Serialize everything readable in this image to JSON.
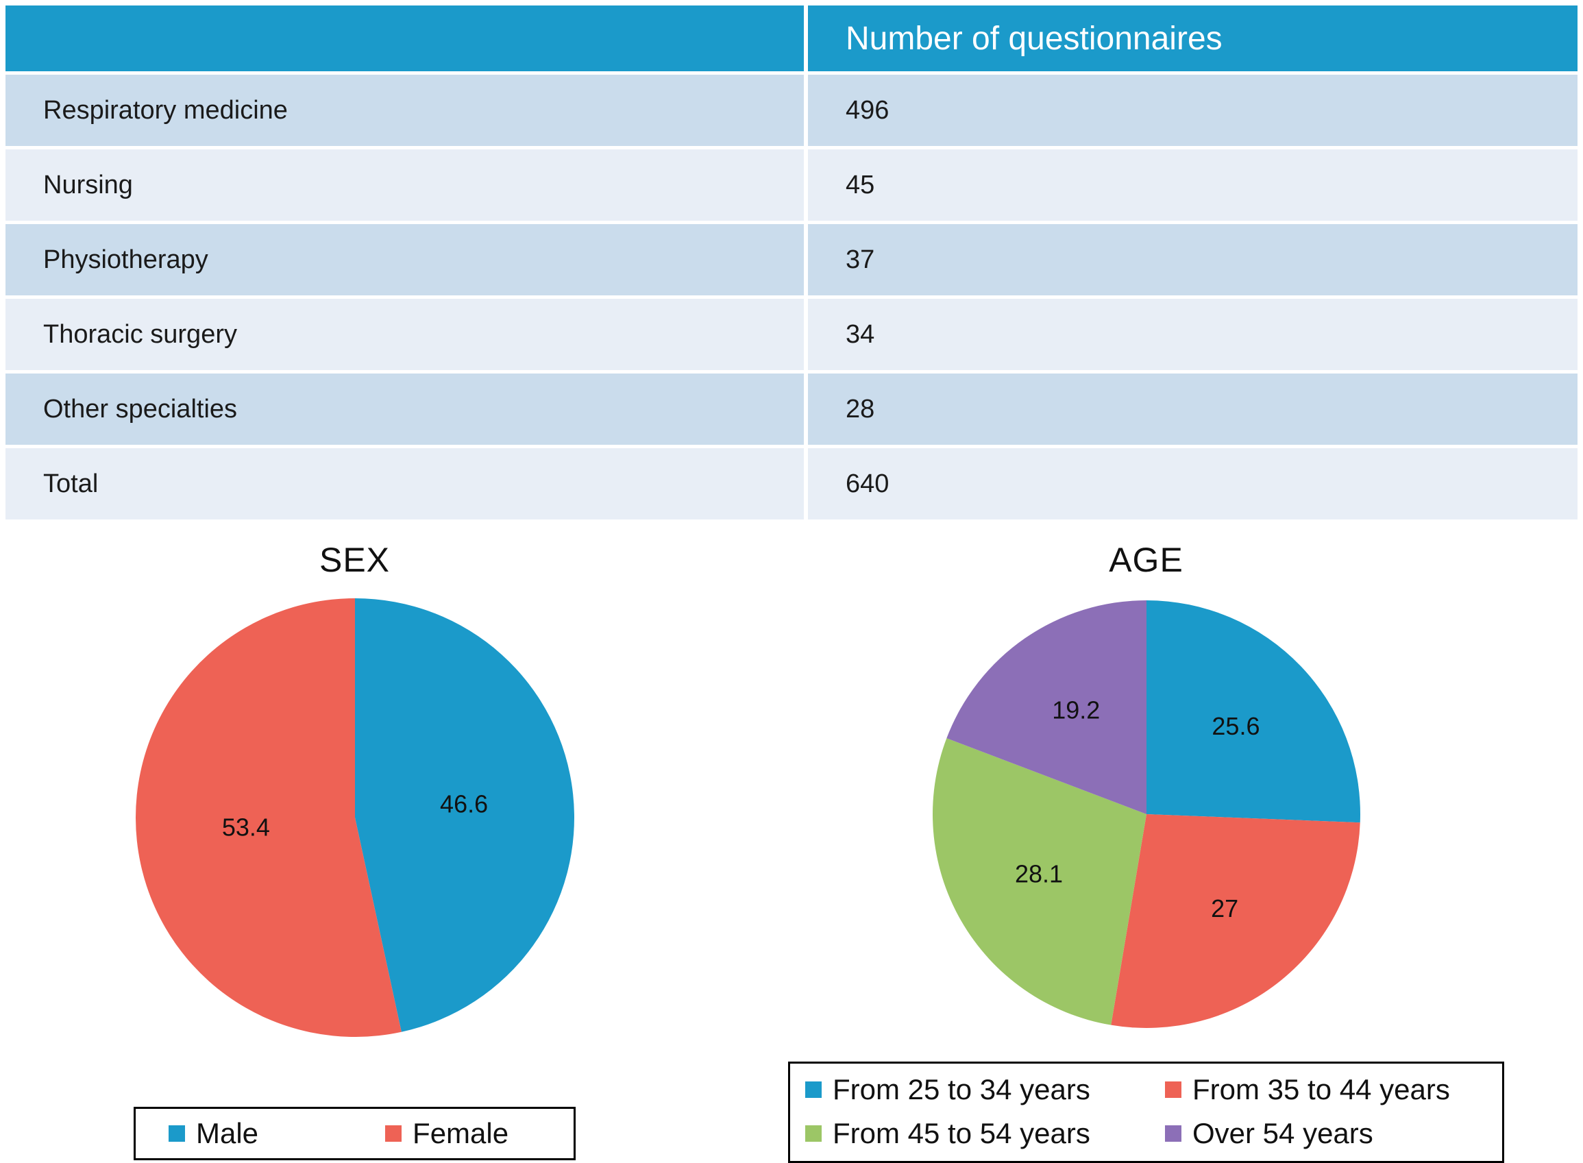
{
  "table": {
    "header": {
      "col1": "",
      "col2": "Number of questionnaires"
    },
    "rows": [
      {
        "label": "Respiratory medicine",
        "value": "496"
      },
      {
        "label": "Nursing",
        "value": "45"
      },
      {
        "label": "Physiotherapy",
        "value": "37"
      },
      {
        "label": "Thoracic surgery",
        "value": "34"
      },
      {
        "label": "Other specialties",
        "value": "28"
      },
      {
        "label": "Total",
        "value": "640"
      }
    ]
  },
  "colors": {
    "header_bg": "#1B9ACA",
    "row_dark": "#CADCEC",
    "row_light": "#E8EEF6",
    "blue": "#1B9ACA",
    "red": "#EE6255",
    "green": "#9CC666",
    "purple": "#8C6FB7"
  },
  "chart_data": [
    {
      "type": "table",
      "title": "Number of questionnaires",
      "categories": [
        "Respiratory medicine",
        "Nursing",
        "Physiotherapy",
        "Thoracic surgery",
        "Other specialties",
        "Total"
      ],
      "values": [
        496,
        45,
        37,
        34,
        28,
        640
      ]
    },
    {
      "type": "pie",
      "title": "SEX",
      "categories": [
        "Male",
        "Female"
      ],
      "values": [
        46.6,
        53.4
      ],
      "labels": [
        "46.6",
        "53.4"
      ],
      "colors": [
        "#1B9ACA",
        "#EE6255"
      ],
      "legend_position": "bottom",
      "start_angle_deg": -90,
      "direction": "clockwise"
    },
    {
      "type": "pie",
      "title": "AGE",
      "categories": [
        "From 25 to 34 years",
        "From 35 to 44 years",
        "From 45 to 54 years",
        "Over 54 years"
      ],
      "values": [
        25.6,
        27,
        28.1,
        19.2
      ],
      "labels": [
        "25.6",
        "27",
        "28.1",
        "19.2"
      ],
      "colors": [
        "#1B9ACA",
        "#EE6255",
        "#9CC666",
        "#8C6FB7"
      ],
      "legend_position": "bottom",
      "start_angle_deg": -90,
      "direction": "clockwise"
    }
  ]
}
